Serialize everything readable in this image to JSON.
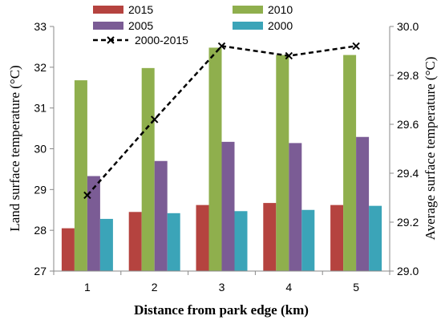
{
  "chart_data": {
    "type": "bar",
    "categories": [
      "1",
      "2",
      "3",
      "4",
      "5"
    ],
    "xlabel": "Distance from park edge (km)",
    "ylabel": "Land surface temperature (°C)",
    "y2label": "Average  surface temperature (°C)",
    "ylim": [
      27,
      33
    ],
    "yticks": [
      "27",
      "28",
      "29",
      "30",
      "31",
      "32",
      "33"
    ],
    "y2lim": [
      29.0,
      30.0
    ],
    "y2ticks": [
      "29.0",
      "29.2",
      "29.4",
      "29.6",
      "29.8",
      "30.0"
    ],
    "grid": false,
    "legend_position": "top",
    "series": [
      {
        "name": "2015",
        "values": [
          28.05,
          28.45,
          28.62,
          28.67,
          28.62
        ],
        "color": "#b5433f"
      },
      {
        "name": "2010",
        "values": [
          31.68,
          31.98,
          32.48,
          32.3,
          32.3
        ],
        "color": "#8faf4d"
      },
      {
        "name": "2005",
        "values": [
          29.33,
          29.7,
          30.17,
          30.14,
          30.29
        ],
        "color": "#7b5c95"
      },
      {
        "name": "2000",
        "values": [
          28.28,
          28.42,
          28.47,
          28.5,
          28.6
        ],
        "color": "#3ba4b8"
      }
    ],
    "line_series": {
      "name": "2000-2015",
      "axis": "secondary",
      "values": [
        29.31,
        29.62,
        29.92,
        29.88,
        29.92
      ],
      "color": "#000000",
      "style": "dashed",
      "marker": "x"
    }
  }
}
